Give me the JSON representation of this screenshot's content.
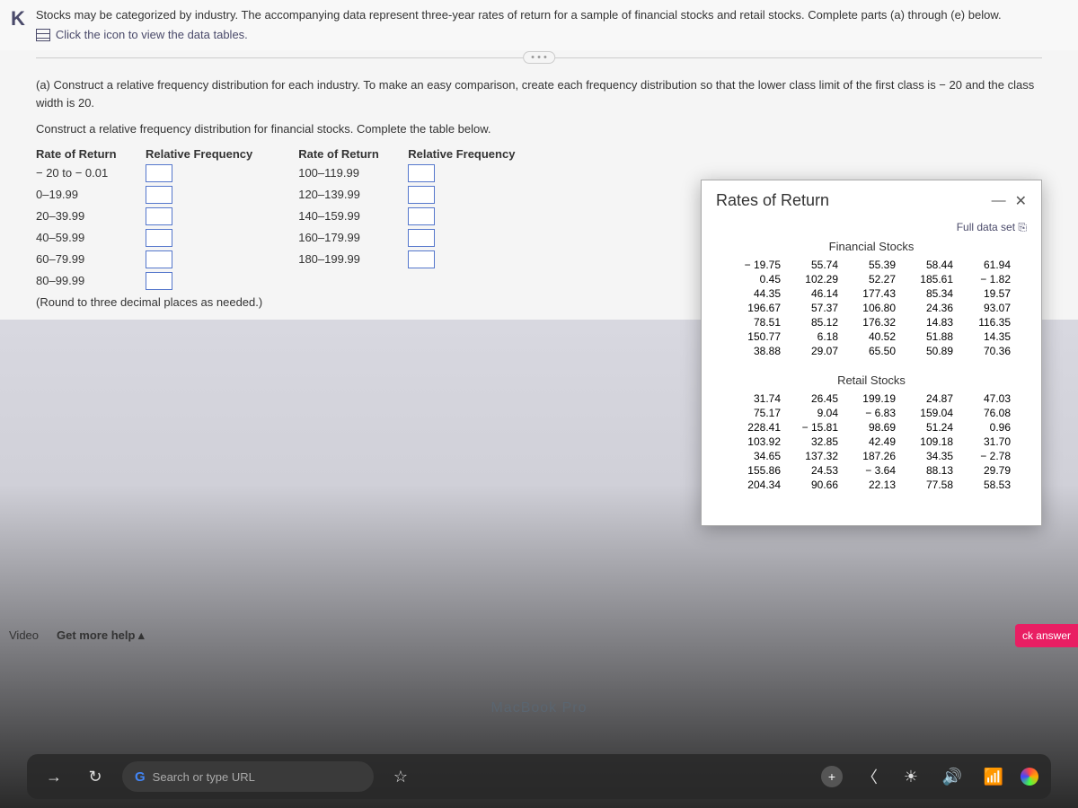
{
  "intro": "Stocks may be categorized by industry. The accompanying data represent three-year rates of return for a sample of financial stocks and retail stocks. Complete parts (a) through (e) below.",
  "icon_link_text": "Click the icon to view the data tables.",
  "divider_dots": "• • •",
  "question_a": "(a) Construct a relative frequency distribution for each industry. To make an easy comparison, create each frequency distribution so that the lower class limit of the first class is − 20 and the class width is 20.",
  "construct_text": "Construct a relative frequency distribution for financial stocks. Complete the table below.",
  "headers": {
    "rate": "Rate of Return",
    "relfreq": "Relative Frequency"
  },
  "left_classes": [
    "− 20 to − 0.01",
    "0–19.99",
    "20–39.99",
    "40–59.99",
    "60–79.99",
    "80–99.99"
  ],
  "right_classes": [
    "100–119.99",
    "120–139.99",
    "140–159.99",
    "160–179.99",
    "180–199.99"
  ],
  "round_note": "(Round to three decimal places as needed.)",
  "modal": {
    "title": "Rates of Return",
    "full_data": "Full data set",
    "financial_title": "Financial Stocks",
    "retail_title": "Retail Stocks",
    "financial": [
      "− 19.75",
      "55.74",
      "55.39",
      "58.44",
      "61.94",
      "0.45",
      "102.29",
      "52.27",
      "185.61",
      "− 1.82",
      "44.35",
      "46.14",
      "177.43",
      "85.34",
      "19.57",
      "196.67",
      "57.37",
      "106.80",
      "24.36",
      "93.07",
      "78.51",
      "85.12",
      "176.32",
      "14.83",
      "116.35",
      "150.77",
      "6.18",
      "40.52",
      "51.88",
      "14.35",
      "38.88",
      "29.07",
      "65.50",
      "50.89",
      "70.36"
    ],
    "retail": [
      "31.74",
      "26.45",
      "199.19",
      "24.87",
      "47.03",
      "75.17",
      "9.04",
      "− 6.83",
      "159.04",
      "76.08",
      "228.41",
      "− 15.81",
      "98.69",
      "51.24",
      "0.96",
      "103.92",
      "32.85",
      "42.49",
      "109.18",
      "31.70",
      "34.65",
      "137.32",
      "187.26",
      "34.35",
      "− 2.78",
      "155.86",
      "24.53",
      "− 3.64",
      "88.13",
      "29.79",
      "204.34",
      "90.66",
      "22.13",
      "77.58",
      "58.53"
    ]
  },
  "help": {
    "video": "Video",
    "more": "Get more help ▴"
  },
  "ck_answer": "ck answer",
  "macbook": "MacBook Pro",
  "taskbar": {
    "search": "Search or type URL"
  }
}
